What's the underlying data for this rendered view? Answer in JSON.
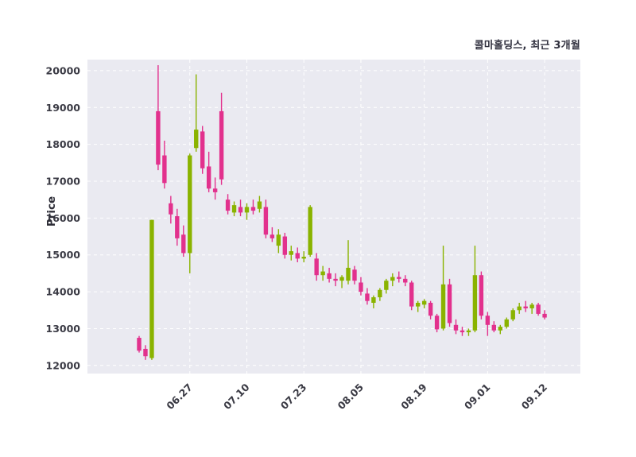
{
  "chart_data": {
    "type": "candlestick",
    "title": "콜마홀딩스, 최근 3개월",
    "ylabel": "Price",
    "y_ticks": [
      12000,
      13000,
      14000,
      15000,
      16000,
      17000,
      18000,
      19000,
      20000
    ],
    "ylim": [
      11780,
      20300
    ],
    "grid": "on",
    "x_ticks": [
      {
        "label": "06.27",
        "index": 8
      },
      {
        "label": "07.10",
        "index": 17
      },
      {
        "label": "07.23",
        "index": 26
      },
      {
        "label": "08.05",
        "index": 35
      },
      {
        "label": "08.19",
        "index": 45
      },
      {
        "label": "09.01",
        "index": 55
      },
      {
        "label": "09.12",
        "index": 64
      }
    ],
    "colors": {
      "up": "#8ab300",
      "down": "#e2318d",
      "plot_bg": "#eaeaf1",
      "grid": "#ffffff",
      "text": "#3a3a44"
    },
    "candles_format": [
      "open",
      "high",
      "low",
      "close"
    ],
    "candles": [
      [
        12750,
        12800,
        12350,
        12400
      ],
      [
        12450,
        12550,
        12150,
        12250
      ],
      [
        12200,
        15950,
        12150,
        15950
      ],
      [
        18900,
        20150,
        17300,
        17450
      ],
      [
        17700,
        18100,
        16800,
        16950
      ],
      [
        16400,
        16600,
        15850,
        16100
      ],
      [
        16050,
        16250,
        15250,
        15450
      ],
      [
        15550,
        15800,
        14950,
        15050
      ],
      [
        15050,
        17750,
        14500,
        17700
      ],
      [
        17900,
        19900,
        17800,
        18400
      ],
      [
        18350,
        18500,
        17200,
        17350
      ],
      [
        17400,
        17800,
        16700,
        16800
      ],
      [
        16800,
        17100,
        16500,
        16700
      ],
      [
        18900,
        19400,
        16900,
        17050
      ],
      [
        16500,
        16650,
        16100,
        16200
      ],
      [
        16150,
        16450,
        16050,
        16350
      ],
      [
        16300,
        16500,
        16050,
        16150
      ],
      [
        16150,
        16400,
        15950,
        16300
      ],
      [
        16300,
        16500,
        16100,
        16200
      ],
      [
        16250,
        16600,
        16150,
        16450
      ],
      [
        16300,
        16500,
        15450,
        15550
      ],
      [
        15550,
        15750,
        15350,
        15450
      ],
      [
        15250,
        15700,
        15050,
        15550
      ],
      [
        15500,
        15600,
        14900,
        15000
      ],
      [
        15000,
        15250,
        14850,
        15100
      ],
      [
        15050,
        15200,
        14800,
        14900
      ],
      [
        14900,
        15100,
        14800,
        14950
      ],
      [
        15000,
        16350,
        14950,
        16300
      ],
      [
        14900,
        15050,
        14300,
        14450
      ],
      [
        14450,
        14700,
        14300,
        14550
      ],
      [
        14500,
        14650,
        14250,
        14350
      ],
      [
        14350,
        14500,
        14150,
        14300
      ],
      [
        14300,
        14450,
        14100,
        14400
      ],
      [
        14300,
        15400,
        14200,
        14650
      ],
      [
        14600,
        14700,
        14200,
        14300
      ],
      [
        14250,
        14400,
        13900,
        14000
      ],
      [
        13950,
        14100,
        13650,
        13750
      ],
      [
        13700,
        13900,
        13550,
        13850
      ],
      [
        13850,
        14100,
        13750,
        14050
      ],
      [
        14050,
        14350,
        13950,
        14300
      ],
      [
        14300,
        14500,
        14150,
        14400
      ],
      [
        14400,
        14550,
        14250,
        14350
      ],
      [
        14350,
        14450,
        14150,
        14250
      ],
      [
        14250,
        14300,
        13500,
        13600
      ],
      [
        13600,
        13750,
        13450,
        13700
      ],
      [
        13650,
        13800,
        13550,
        13750
      ],
      [
        13700,
        13750,
        13250,
        13350
      ],
      [
        13350,
        13400,
        12900,
        12980
      ],
      [
        13000,
        15250,
        12950,
        14200
      ],
      [
        14200,
        14350,
        13050,
        13150
      ],
      [
        13100,
        13250,
        12850,
        12950
      ],
      [
        12950,
        13050,
        12800,
        12900
      ],
      [
        12900,
        13000,
        12800,
        12950
      ],
      [
        12950,
        15250,
        12900,
        14450
      ],
      [
        14450,
        14550,
        13250,
        13350
      ],
      [
        13350,
        13450,
        12800,
        13100
      ],
      [
        13100,
        13200,
        12900,
        12950
      ],
      [
        12950,
        13100,
        12850,
        13050
      ],
      [
        13050,
        13300,
        13000,
        13250
      ],
      [
        13250,
        13550,
        13200,
        13500
      ],
      [
        13500,
        13700,
        13400,
        13600
      ],
      [
        13600,
        13750,
        13450,
        13550
      ],
      [
        13550,
        13700,
        13400,
        13650
      ],
      [
        13650,
        13700,
        13350,
        13400
      ],
      [
        13400,
        13500,
        13250,
        13300
      ]
    ]
  }
}
